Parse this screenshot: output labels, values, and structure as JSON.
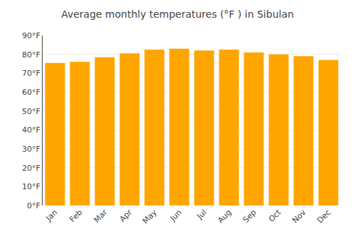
{
  "chart_data": {
    "type": "bar",
    "title": "Average monthly temperatures (°F ) in Sibulan",
    "categories": [
      "Jan",
      "Feb",
      "Mar",
      "Apr",
      "May",
      "Jun",
      "Jul",
      "Aug",
      "Sep",
      "Oct",
      "Nov",
      "Dec"
    ],
    "values": [
      75.5,
      76.0,
      78.5,
      80.5,
      82.5,
      83.0,
      82.0,
      82.5,
      81.0,
      80.0,
      79.0,
      77.0
    ],
    "color": "#FFA500",
    "ylim": [
      0,
      90
    ],
    "yticks": [
      {
        "value": 0,
        "label": "0°F"
      },
      {
        "value": 10,
        "label": "10°F"
      },
      {
        "value": 20,
        "label": "20°F"
      },
      {
        "value": 30,
        "label": "30°F"
      },
      {
        "value": 40,
        "label": "40°F"
      },
      {
        "value": 50,
        "label": "50°F"
      },
      {
        "value": 60,
        "label": "60°F"
      },
      {
        "value": 70,
        "label": "70°F"
      },
      {
        "value": 80,
        "label": "80°F"
      },
      {
        "value": 90,
        "label": "90°F"
      }
    ],
    "grid": true
  }
}
